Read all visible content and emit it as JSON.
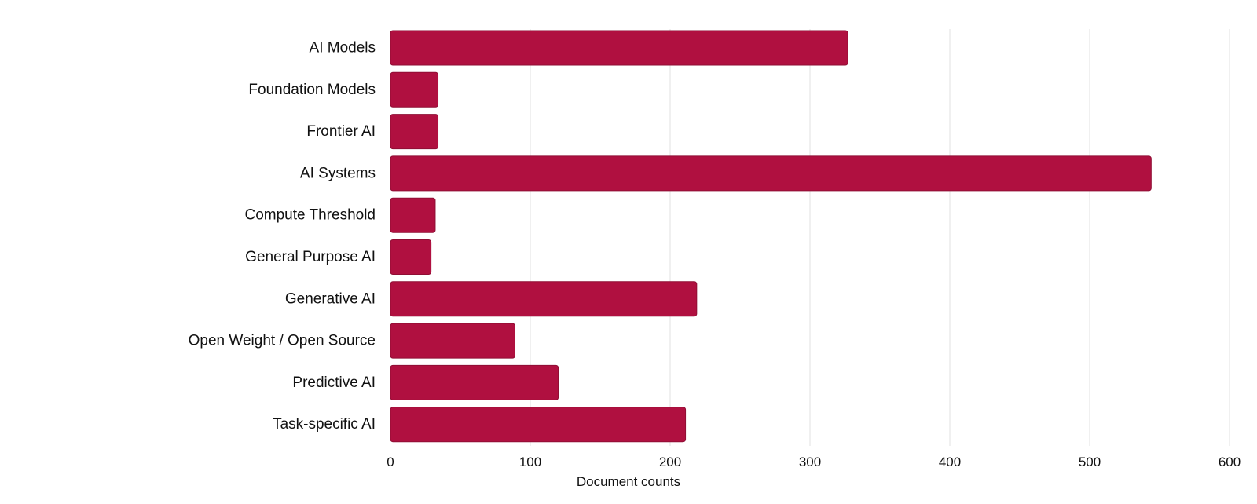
{
  "chart_data": {
    "type": "bar",
    "orientation": "horizontal",
    "categories": [
      "AI Models",
      "Foundation Models",
      "Frontier AI",
      "AI Systems",
      "Compute Threshold",
      "General Purpose AI",
      "Generative AI",
      "Open Weight / Open Source",
      "Predictive AI",
      "Task-specific AI"
    ],
    "values": [
      327,
      34,
      34,
      544,
      32,
      29,
      219,
      89,
      120,
      211
    ],
    "xlabel": "Document counts",
    "ylabel": "",
    "title": "",
    "xlim": [
      0,
      600
    ],
    "xticks": [
      "0",
      "100",
      "200",
      "300",
      "400",
      "500",
      "600"
    ],
    "grid": "vertical",
    "legend": "none",
    "colors": {
      "bar": "#b01040",
      "bar_edge": "#8f0e34",
      "grid": "#e6e6e6",
      "text": "#111111"
    }
  }
}
